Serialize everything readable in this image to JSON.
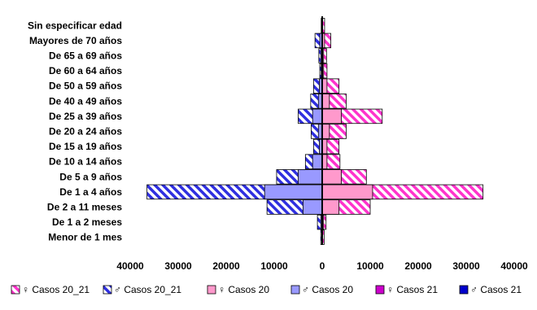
{
  "chart_data": {
    "type": "bar",
    "orientation": "horizontal",
    "layout": "population-pyramid",
    "categories": [
      "Sin especificar  edad",
      "Mayores de 70 años",
      "De 65 a 69 años",
      "De 60 a 64 años",
      "De 50 a 59 años",
      "De 40 a 49 años",
      "De 25 a 39 años",
      "De 20 a 24 años",
      "De 15 a 19 años",
      "De 10 a 14 años",
      "De 5 a 9 años",
      "De 1 a 4 años",
      "De 2 a 11 meses",
      "De 1 a 2 meses",
      "Menor de 1 mes"
    ],
    "x_ticks": [
      "40000",
      "30000",
      "20000",
      "10000",
      "0",
      "10000",
      "20000",
      "30000",
      "40000"
    ],
    "xlim": [
      -40000,
      40000
    ],
    "series": [
      {
        "name": "♀ Casos 20_21",
        "side": "right",
        "color": "#ff66cc",
        "pattern": "hatch-pink",
        "values": [
          500,
          1800,
          900,
          1000,
          3500,
          5000,
          12500,
          5000,
          3500,
          3700,
          9200,
          33500,
          10000,
          800,
          400
        ]
      },
      {
        "name": "♂ Casos 20_21",
        "side": "left",
        "color": "#3333ff",
        "pattern": "hatch-blue",
        "values": [
          200,
          1500,
          700,
          500,
          1800,
          2400,
          5000,
          2300,
          1800,
          3500,
          9500,
          36500,
          11500,
          1000,
          300
        ]
      },
      {
        "name": "♀ Casos 20",
        "side": "right",
        "color": "#ff99cc",
        "pattern": "solid",
        "values": [
          100,
          500,
          300,
          300,
          1000,
          1500,
          4000,
          1500,
          1000,
          1000,
          4000,
          10500,
          3500,
          300,
          100
        ]
      },
      {
        "name": "♂ Casos 20",
        "side": "left",
        "color": "#9999ff",
        "pattern": "solid",
        "values": [
          100,
          500,
          300,
          200,
          600,
          800,
          2000,
          800,
          600,
          2000,
          5000,
          12000,
          4000,
          300,
          100
        ]
      },
      {
        "name": "♀ Casos 21",
        "side": "right",
        "color": "#cc00cc",
        "pattern": "solid",
        "values": [
          0,
          0,
          0,
          0,
          0,
          0,
          0,
          0,
          0,
          0,
          0,
          0,
          0,
          0,
          0
        ]
      },
      {
        "name": "♂ Casos 21",
        "side": "left",
        "color": "#0000cc",
        "pattern": "solid",
        "values": [
          0,
          0,
          0,
          0,
          0,
          0,
          0,
          0,
          0,
          0,
          0,
          0,
          0,
          0,
          0
        ]
      }
    ],
    "legend_position": "bottom",
    "grid": false
  }
}
